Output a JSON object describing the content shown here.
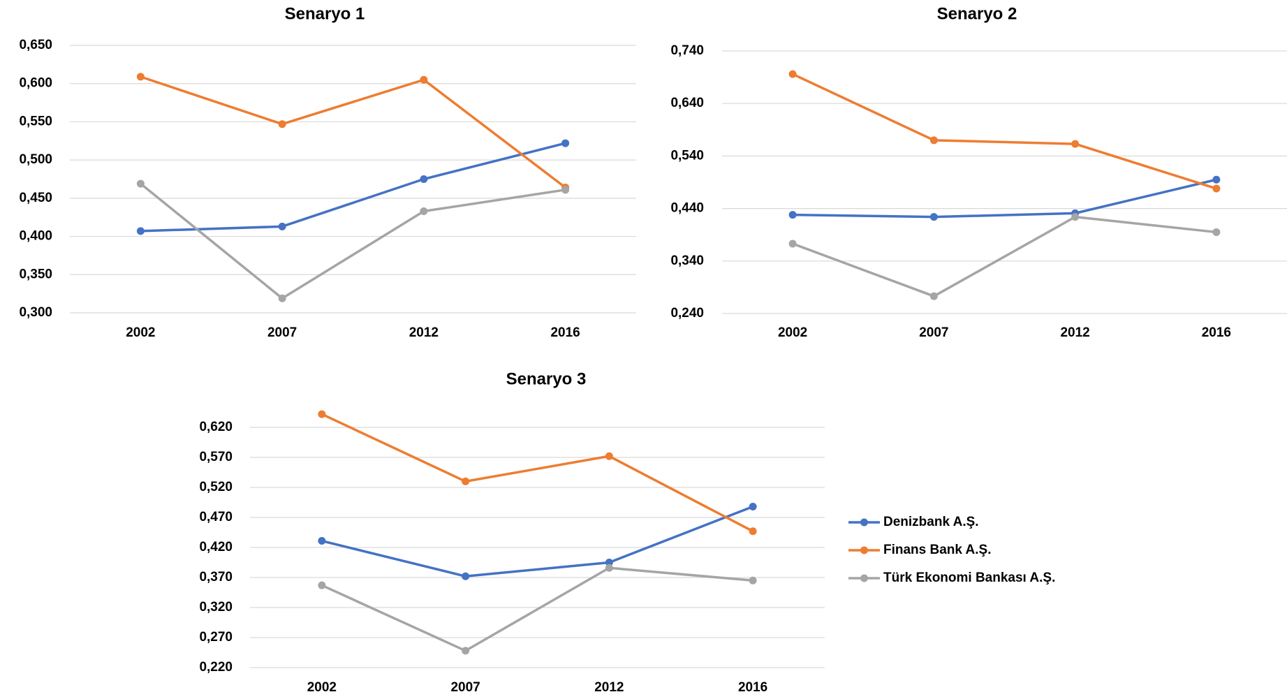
{
  "chart_data": [
    {
      "type": "line",
      "title": "Senaryo 1",
      "categories": [
        "2002",
        "2007",
        "2012",
        "2016"
      ],
      "ylim": [
        0.3,
        0.65
      ],
      "yticks": [
        {
          "value": 0.3,
          "label": "0,300"
        },
        {
          "value": 0.35,
          "label": "0,350"
        },
        {
          "value": 0.4,
          "label": "0,400"
        },
        {
          "value": 0.45,
          "label": "0,450"
        },
        {
          "value": 0.5,
          "label": "0,500"
        },
        {
          "value": 0.55,
          "label": "0,550"
        },
        {
          "value": 0.6,
          "label": "0,600"
        },
        {
          "value": 0.65,
          "label": "0,650"
        }
      ],
      "grid": true,
      "series": [
        {
          "color": "#4472c4",
          "values": [
            0.407,
            0.413,
            0.475,
            0.522
          ]
        },
        {
          "color": "#ed7d31",
          "values": [
            0.609,
            0.547,
            0.605,
            0.464
          ]
        },
        {
          "color": "#a5a5a5",
          "values": [
            0.469,
            0.319,
            0.433,
            0.461
          ]
        }
      ]
    },
    {
      "type": "line",
      "title": "Senaryo 2",
      "categories": [
        "2002",
        "2007",
        "2012",
        "2016"
      ],
      "ylim": [
        0.24,
        0.74
      ],
      "yticks": [
        {
          "value": 0.24,
          "label": "0,240"
        },
        {
          "value": 0.34,
          "label": "0,340"
        },
        {
          "value": 0.44,
          "label": "0,440"
        },
        {
          "value": 0.54,
          "label": "0,540"
        },
        {
          "value": 0.64,
          "label": "0,640"
        },
        {
          "value": 0.74,
          "label": "0,740"
        }
      ],
      "grid": true,
      "series": [
        {
          "color": "#4472c4",
          "values": [
            0.428,
            0.424,
            0.431,
            0.495
          ]
        },
        {
          "color": "#ed7d31",
          "values": [
            0.696,
            0.57,
            0.563,
            0.478
          ]
        },
        {
          "color": "#a5a5a5",
          "values": [
            0.373,
            0.273,
            0.424,
            0.395
          ]
        }
      ]
    },
    {
      "type": "line",
      "title": "Senaryo 3",
      "categories": [
        "2002",
        "2007",
        "2012",
        "2016"
      ],
      "ylim": [
        0.22,
        0.66
      ],
      "yticks": [
        {
          "value": 0.22,
          "label": "0,220"
        },
        {
          "value": 0.27,
          "label": "0,270"
        },
        {
          "value": 0.32,
          "label": "0,320"
        },
        {
          "value": 0.37,
          "label": "0,370"
        },
        {
          "value": 0.42,
          "label": "0,420"
        },
        {
          "value": 0.47,
          "label": "0,470"
        },
        {
          "value": 0.52,
          "label": "0,520"
        },
        {
          "value": 0.57,
          "label": "0,570"
        },
        {
          "value": 0.62,
          "label": "0,620"
        }
      ],
      "grid": true,
      "legend": "right",
      "series": [
        {
          "name": "Denizbank A.Ş.",
          "color": "#4472c4",
          "values": [
            0.431,
            0.372,
            0.395,
            0.488
          ]
        },
        {
          "name": "Finans Bank A.Ş.",
          "color": "#ed7d31",
          "values": [
            0.642,
            0.53,
            0.572,
            0.447
          ]
        },
        {
          "name": "Türk Ekonomi Bankası A.Ş.",
          "color": "#a5a5a5",
          "values": [
            0.357,
            0.248,
            0.386,
            0.365
          ]
        }
      ]
    }
  ]
}
